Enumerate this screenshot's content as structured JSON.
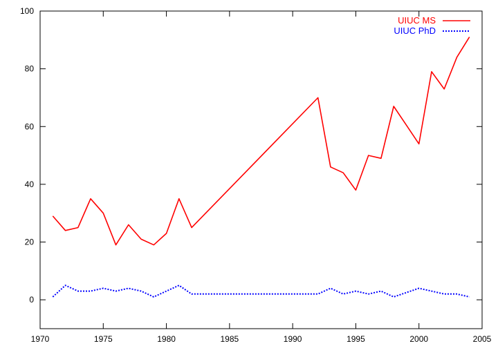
{
  "chart_data": {
    "type": "line",
    "title": "",
    "xlabel": "",
    "ylabel": "",
    "xlim": [
      1970,
      2005
    ],
    "ylim": [
      -10,
      100
    ],
    "x_ticks": [
      1970,
      1975,
      1980,
      1985,
      1990,
      1995,
      2000,
      2005
    ],
    "y_ticks": [
      0,
      20,
      40,
      60,
      80,
      100
    ],
    "grid": false,
    "legend_position": "top-right",
    "series": [
      {
        "name": "UIUC MS",
        "color": "#ff0000",
        "style": "solid",
        "x": [
          1971,
          1972,
          1973,
          1974,
          1975,
          1976,
          1977,
          1978,
          1979,
          1980,
          1981,
          1982,
          1992,
          1993,
          1994,
          1995,
          1996,
          1997,
          1998,
          1999,
          2000,
          2001,
          2002,
          2003,
          2004
        ],
        "values": [
          29,
          24,
          25,
          35,
          30,
          19,
          26,
          21,
          19,
          23,
          35,
          25,
          70,
          46,
          44,
          38,
          50,
          49,
          67,
          60.5,
          54,
          79,
          73,
          84,
          91
        ]
      },
      {
        "name": "UIUC PhD",
        "color": "#0000ff",
        "style": "dotted",
        "x": [
          1971,
          1972,
          1973,
          1974,
          1975,
          1976,
          1977,
          1978,
          1979,
          1980,
          1981,
          1982,
          1992,
          1993,
          1994,
          1995,
          1996,
          1997,
          1998,
          1999,
          2000,
          2001,
          2002,
          2003,
          2004
        ],
        "values": [
          1,
          5,
          3,
          3,
          4,
          3,
          4,
          3,
          1,
          3,
          5,
          2,
          2,
          4,
          2,
          3,
          2,
          3,
          1,
          2.5,
          4,
          3,
          2,
          2,
          1
        ]
      }
    ]
  }
}
